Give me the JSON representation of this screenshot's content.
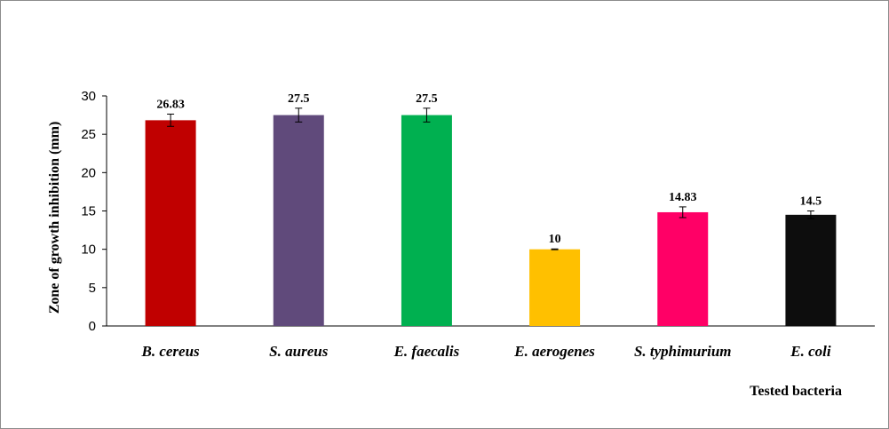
{
  "chart_data": {
    "type": "bar",
    "title": "",
    "xlabel": "Tested  bacteria",
    "ylabel": "Zone of growth inhibition  (mm)",
    "ylim": [
      0,
      30
    ],
    "yticks": [
      0,
      5,
      10,
      15,
      20,
      25,
      30
    ],
    "grid": false,
    "legend": "none",
    "categories": [
      "B. cereus",
      "S. aureus",
      "E. faecalis",
      "E. aerogenes",
      "S. typhimurium",
      "E. coli"
    ],
    "values": [
      26.83,
      27.5,
      27.5,
      10,
      14.83,
      14.5
    ],
    "value_labels": [
      "26.83",
      "27.5",
      "27.5",
      "10",
      "14.83",
      "14.5"
    ],
    "errors": [
      0.8,
      0.9,
      0.9,
      0.05,
      0.7,
      0.5
    ],
    "colors": [
      "#c00000",
      "#604a7b",
      "#00b050",
      "#ffc000",
      "#ff0066",
      "#0d0d0d"
    ]
  }
}
